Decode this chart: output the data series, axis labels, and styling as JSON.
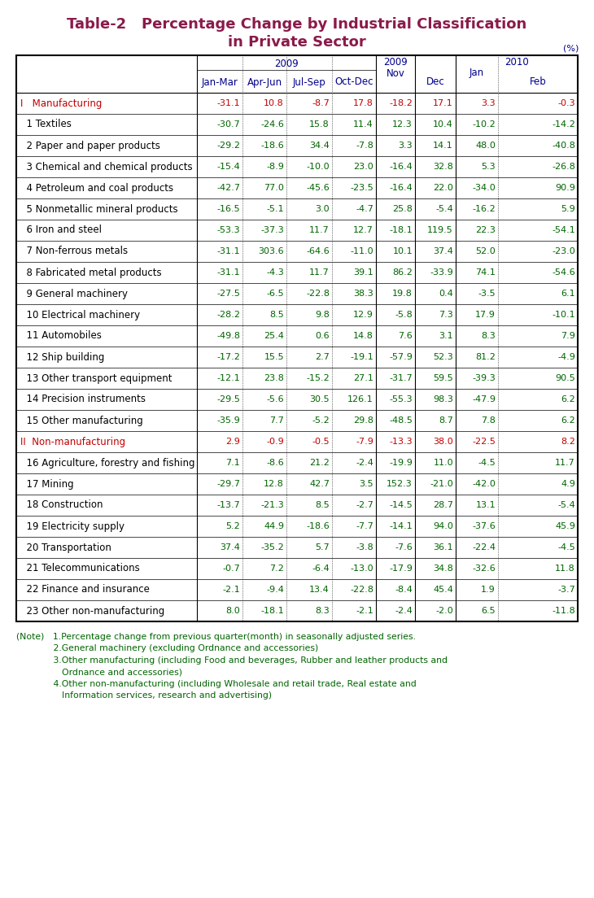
{
  "title_line1": "Table-2   Percentage Change by Industrial Classification",
  "title_line2": "in Private Sector",
  "title_color": "#8B1A4A",
  "header_color": "#00008B",
  "data_color_green": "#006400",
  "data_color_red": "#C00000",
  "note_color": "#006400",
  "rows": [
    {
      "label": "I   Manufacturing",
      "type": "header",
      "values": [
        "-31.1",
        "10.8",
        "-8.7",
        "17.8",
        "-18.2",
        "17.1",
        "3.3",
        "-0.3"
      ]
    },
    {
      "label": "  1 Textiles",
      "type": "data",
      "values": [
        "-30.7",
        "-24.6",
        "15.8",
        "11.4",
        "12.3",
        "10.4",
        "-10.2",
        "-14.2"
      ]
    },
    {
      "label": "  2 Paper and paper products",
      "type": "data",
      "values": [
        "-29.2",
        "-18.6",
        "34.4",
        "-7.8",
        "3.3",
        "14.1",
        "48.0",
        "-40.8"
      ]
    },
    {
      "label": "  3 Chemical and chemical products",
      "type": "data",
      "values": [
        "-15.4",
        "-8.9",
        "-10.0",
        "23.0",
        "-16.4",
        "32.8",
        "5.3",
        "-26.8"
      ]
    },
    {
      "label": "  4 Petroleum and coal products",
      "type": "data",
      "values": [
        "-42.7",
        "77.0",
        "-45.6",
        "-23.5",
        "-16.4",
        "22.0",
        "-34.0",
        "90.9"
      ]
    },
    {
      "label": "  5 Nonmetallic mineral products",
      "type": "data",
      "values": [
        "-16.5",
        "-5.1",
        "3.0",
        "-4.7",
        "25.8",
        "-5.4",
        "-16.2",
        "5.9"
      ]
    },
    {
      "label": "  6 Iron and steel",
      "type": "data",
      "values": [
        "-53.3",
        "-37.3",
        "11.7",
        "12.7",
        "-18.1",
        "119.5",
        "22.3",
        "-54.1"
      ]
    },
    {
      "label": "  7 Non-ferrous metals",
      "type": "data",
      "values": [
        "-31.1",
        "303.6",
        "-64.6",
        "-11.0",
        "10.1",
        "37.4",
        "52.0",
        "-23.0"
      ]
    },
    {
      "label": "  8 Fabricated metal products",
      "type": "data",
      "values": [
        "-31.1",
        "-4.3",
        "11.7",
        "39.1",
        "86.2",
        "-33.9",
        "74.1",
        "-54.6"
      ]
    },
    {
      "label": "  9 General machinery",
      "type": "data",
      "values": [
        "-27.5",
        "-6.5",
        "-22.8",
        "38.3",
        "19.8",
        "0.4",
        "-3.5",
        "6.1"
      ]
    },
    {
      "label": "  10 Electrical machinery",
      "type": "data",
      "values": [
        "-28.2",
        "8.5",
        "9.8",
        "12.9",
        "-5.8",
        "7.3",
        "17.9",
        "-10.1"
      ]
    },
    {
      "label": "  11 Automobiles",
      "type": "data",
      "values": [
        "-49.8",
        "25.4",
        "0.6",
        "14.8",
        "7.6",
        "3.1",
        "8.3",
        "7.9"
      ]
    },
    {
      "label": "  12 Ship building",
      "type": "data",
      "values": [
        "-17.2",
        "15.5",
        "2.7",
        "-19.1",
        "-57.9",
        "52.3",
        "81.2",
        "-4.9"
      ]
    },
    {
      "label": "  13 Other transport equipment",
      "type": "data",
      "values": [
        "-12.1",
        "23.8",
        "-15.2",
        "27.1",
        "-31.7",
        "59.5",
        "-39.3",
        "90.5"
      ]
    },
    {
      "label": "  14 Precision instruments",
      "type": "data",
      "values": [
        "-29.5",
        "-5.6",
        "30.5",
        "126.1",
        "-55.3",
        "98.3",
        "-47.9",
        "6.2"
      ]
    },
    {
      "label": "  15 Other manufacturing",
      "type": "data",
      "values": [
        "-35.9",
        "7.7",
        "-5.2",
        "29.8",
        "-48.5",
        "8.7",
        "7.8",
        "6.2"
      ]
    },
    {
      "label": "II  Non-manufacturing",
      "type": "header",
      "values": [
        "2.9",
        "-0.9",
        "-0.5",
        "-7.9",
        "-13.3",
        "38.0",
        "-22.5",
        "8.2"
      ]
    },
    {
      "label": "  16 Agriculture, forestry and fishing",
      "type": "data",
      "values": [
        "7.1",
        "-8.6",
        "21.2",
        "-2.4",
        "-19.9",
        "11.0",
        "-4.5",
        "11.7"
      ]
    },
    {
      "label": "  17 Mining",
      "type": "data",
      "values": [
        "-29.7",
        "12.8",
        "42.7",
        "3.5",
        "152.3",
        "-21.0",
        "-42.0",
        "4.9"
      ]
    },
    {
      "label": "  18 Construction",
      "type": "data",
      "values": [
        "-13.7",
        "-21.3",
        "8.5",
        "-2.7",
        "-14.5",
        "28.7",
        "13.1",
        "-5.4"
      ]
    },
    {
      "label": "  19 Electricity supply",
      "type": "data",
      "values": [
        "5.2",
        "44.9",
        "-18.6",
        "-7.7",
        "-14.1",
        "94.0",
        "-37.6",
        "45.9"
      ]
    },
    {
      "label": "  20 Transportation",
      "type": "data",
      "values": [
        "37.4",
        "-35.2",
        "5.7",
        "-3.8",
        "-7.6",
        "36.1",
        "-22.4",
        "-4.5"
      ]
    },
    {
      "label": "  21 Telecommunications",
      "type": "data",
      "values": [
        "-0.7",
        "7.2",
        "-6.4",
        "-13.0",
        "-17.9",
        "34.8",
        "-32.6",
        "11.8"
      ]
    },
    {
      "label": "  22 Finance and insurance",
      "type": "data",
      "values": [
        "-2.1",
        "-9.4",
        "13.4",
        "-22.8",
        "-8.4",
        "45.4",
        "1.9",
        "-3.7"
      ]
    },
    {
      "label": "  23 Other non-manufacturing",
      "type": "data",
      "values": [
        "8.0",
        "-18.1",
        "8.3",
        "-2.1",
        "-2.4",
        "-2.0",
        "6.5",
        "-11.8"
      ]
    }
  ],
  "note_texts": [
    "(Note)   1.Percentage change from previous quarter(month) in seasonally adjusted series.",
    "             2.General machinery (excluding Ordnance and accessories)",
    "             3.Other manufacturing (including Food and beverages, Rubber and leather products and",
    "                Ordnance and accessories)",
    "             4.Other non-manufacturing (including Wholesale and retail trade, Real estate and",
    "                Information services, research and advertising)"
  ]
}
